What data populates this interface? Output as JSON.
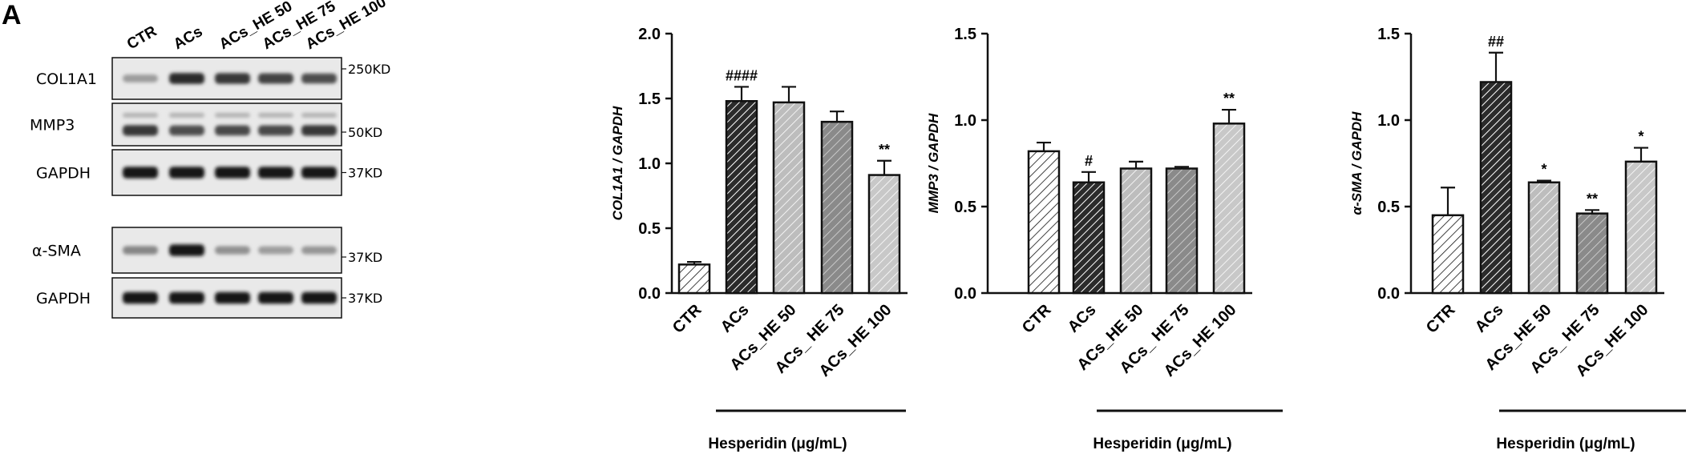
{
  "panel_label": "A",
  "western_blot": {
    "lanes": [
      "CTR",
      "ACs",
      "ACs_HE 50",
      "ACs_HE 75",
      "ACs_HE 100"
    ],
    "blots": [
      {
        "label": "COL1A1",
        "size": "250KD",
        "intensities": [
          0.35,
          0.85,
          0.8,
          0.75,
          0.7
        ]
      },
      {
        "label": "MMP3",
        "size": "50KD",
        "intensities": [
          0.8,
          0.7,
          0.72,
          0.72,
          0.8
        ]
      },
      {
        "label": "GAPDH",
        "size": "37KD",
        "intensities": [
          0.95,
          0.95,
          0.95,
          0.95,
          0.95
        ]
      },
      {
        "label": "α-SMA",
        "size": "37KD",
        "intensities": [
          0.45,
          0.95,
          0.4,
          0.35,
          0.38
        ]
      },
      {
        "label": "GAPDH",
        "size": "37KD",
        "intensities": [
          0.95,
          0.95,
          0.95,
          0.95,
          0.95
        ]
      }
    ]
  },
  "chart_data": [
    {
      "type": "bar",
      "categories": [
        "CTR",
        "ACs",
        "ACs_HE 50",
        "ACs_ HE 75",
        "ACs_HE 100"
      ],
      "values": [
        0.22,
        1.48,
        1.47,
        1.32,
        0.91
      ],
      "errors": [
        0.02,
        0.11,
        0.12,
        0.08,
        0.11
      ],
      "annotations": [
        "",
        "####",
        "",
        "",
        "**"
      ],
      "ylabel": "COL1A1 / GAPDH",
      "xlabel": "Hesperidin (μg/mL)",
      "ylim": [
        0,
        2.0
      ],
      "yticks": [
        "0.0",
        "0.5",
        "1.0",
        "1.5",
        "2.0"
      ],
      "grid": false
    },
    {
      "type": "bar",
      "categories": [
        "CTR",
        "ACs",
        "ACs_HE 50",
        "ACs_ HE 75",
        "ACs_HE 100"
      ],
      "values": [
        0.82,
        0.64,
        0.72,
        0.72,
        0.98
      ],
      "errors": [
        0.05,
        0.06,
        0.04,
        0.01,
        0.08
      ],
      "annotations": [
        "",
        "#",
        "",
        "",
        "**"
      ],
      "ylabel": "MMP3 / GAPDH",
      "xlabel": "Hesperidin (μg/mL)",
      "ylim": [
        0,
        1.5
      ],
      "yticks": [
        "0.0",
        "0.5",
        "1.0",
        "1.5"
      ],
      "grid": false
    },
    {
      "type": "bar",
      "categories": [
        "CTR",
        "ACs",
        "ACs_HE 50",
        "ACs_ HE 75",
        "ACs_HE 100"
      ],
      "values": [
        0.45,
        1.22,
        0.64,
        0.46,
        0.76
      ],
      "errors": [
        0.16,
        0.17,
        0.01,
        0.02,
        0.08
      ],
      "annotations": [
        "",
        "##",
        "*",
        "**",
        "*"
      ],
      "ylabel": "α-SMA / GAPDH",
      "xlabel": "Hesperidin (μg/mL)",
      "ylim": [
        0,
        1.5
      ],
      "yticks": [
        "0.0",
        "0.5",
        "1.0",
        "1.5"
      ],
      "grid": false
    }
  ],
  "colors": {
    "axis": "#111111",
    "bar_fills": [
      "#ffffff",
      "#2b2b2b",
      "#b8b8b8",
      "#8a8a8a",
      "#c4c4c4"
    ],
    "hatch": "#111111",
    "blot_background": "#e9e9e9",
    "band": "#111111"
  }
}
